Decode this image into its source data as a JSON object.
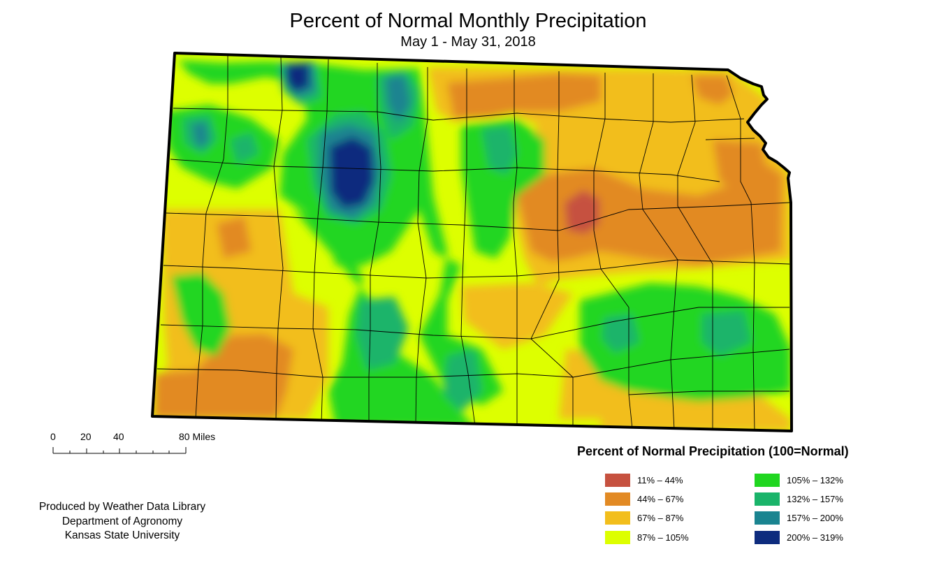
{
  "title": "Percent of Normal Monthly Precipitation",
  "subtitle": "May 1 - May 31, 2018",
  "region": "Kansas",
  "scale_bar": {
    "ticks": [
      "0",
      "20",
      "40",
      "80 Miles"
    ],
    "tick_values": [
      0,
      20,
      40,
      80
    ]
  },
  "credit": {
    "line1": "Produced by Weather Data Library",
    "line2": "Department of Agronomy",
    "line3": "Kansas State University"
  },
  "legend": {
    "title": "Percent of Normal Precipitation (100=Normal)",
    "items": [
      {
        "label": "11% – 44%",
        "color": "#C6513F"
      },
      {
        "label": "44% – 67%",
        "color": "#E28A24"
      },
      {
        "label": "67% – 87%",
        "color": "#F2BE1C"
      },
      {
        "label": "87% – 105%",
        "color": "#DDFF00"
      },
      {
        "label": "105% – 132%",
        "color": "#20D620"
      },
      {
        "label": "132% – 157%",
        "color": "#1AB46A"
      },
      {
        "label": "157% – 200%",
        "color": "#1A8490"
      },
      {
        "label": "200% – 319%",
        "color": "#0E2C7E"
      }
    ]
  }
}
